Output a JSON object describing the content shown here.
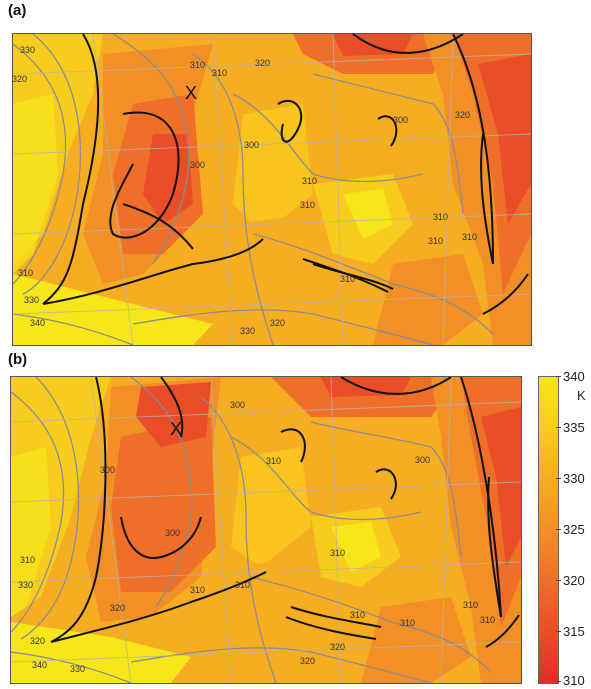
{
  "panels": [
    {
      "label": "(a)"
    },
    {
      "label": "(b)"
    }
  ],
  "colorbar": {
    "unit": "K",
    "ticks": [
      "340",
      "335",
      "330",
      "325",
      "320",
      "315",
      "310"
    ],
    "colors": [
      "#f7e61a",
      "#f8cc1c",
      "#f6ad22",
      "#f28f27",
      "#ef6f29",
      "#e94e28",
      "#e02d28"
    ]
  },
  "contour_labels_a": [
    "330",
    "320",
    "300",
    "310",
    "310",
    "320",
    "310",
    "310",
    "310",
    "340",
    "330",
    "330",
    "310",
    "300",
    "310",
    "310",
    "320",
    "300",
    "310",
    "320"
  ],
  "contour_labels_b": [
    "320",
    "300",
    "310",
    "310",
    "310",
    "300",
    "310",
    "300",
    "310",
    "300",
    "310",
    "320",
    "330",
    "340",
    "330",
    "320",
    "310",
    "310",
    "320",
    "310"
  ],
  "marker": "X"
}
